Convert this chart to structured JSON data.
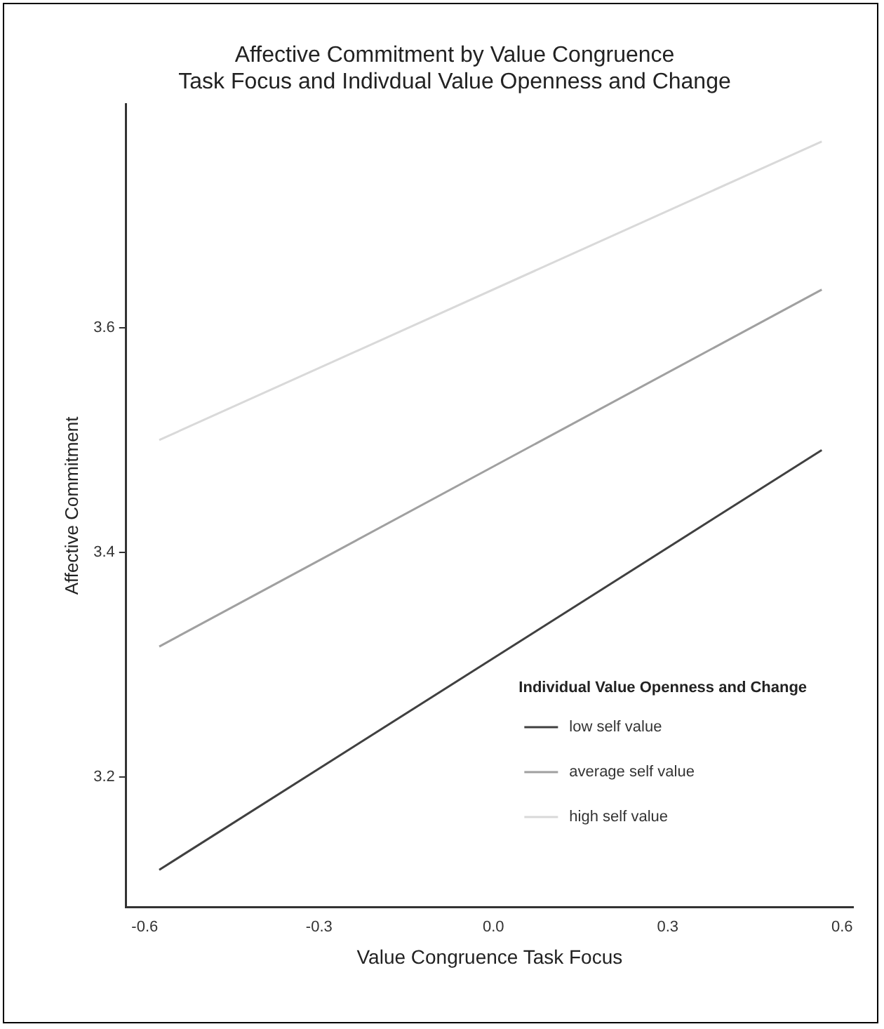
{
  "chart_data": {
    "type": "line",
    "title": [
      "Affective Commitment by Value Congruence",
      "Task Focus and Indivdual Value Openness and Change"
    ],
    "xlabel": "Value Congruence Task Focus",
    "ylabel": "Affective Commitment",
    "legend_title": "Individual Value Openness and Change",
    "legend": "bottom right",
    "grid": false,
    "marker": "none",
    "line_style": "solid",
    "x": [
      -0.575,
      0.565
    ],
    "series": [
      {
        "name": "low self value",
        "color": "#404040",
        "values": [
          3.117,
          3.491
        ]
      },
      {
        "name": "average self value",
        "color": "#a0a0a0",
        "values": [
          3.316,
          3.634
        ]
      },
      {
        "name": "high self value",
        "color": "#d9d9d9",
        "values": [
          3.5,
          3.766
        ]
      }
    ],
    "xlim": [
      -0.632,
      0.619
    ],
    "xticks": [
      -0.6,
      -0.3,
      {
        "value": 0,
        "label": "0.0"
      },
      0.3,
      0.6
    ],
    "ylim": [
      3.084,
      3.799
    ],
    "yticks": [
      3.2,
      3.4,
      3.6
    ]
  }
}
